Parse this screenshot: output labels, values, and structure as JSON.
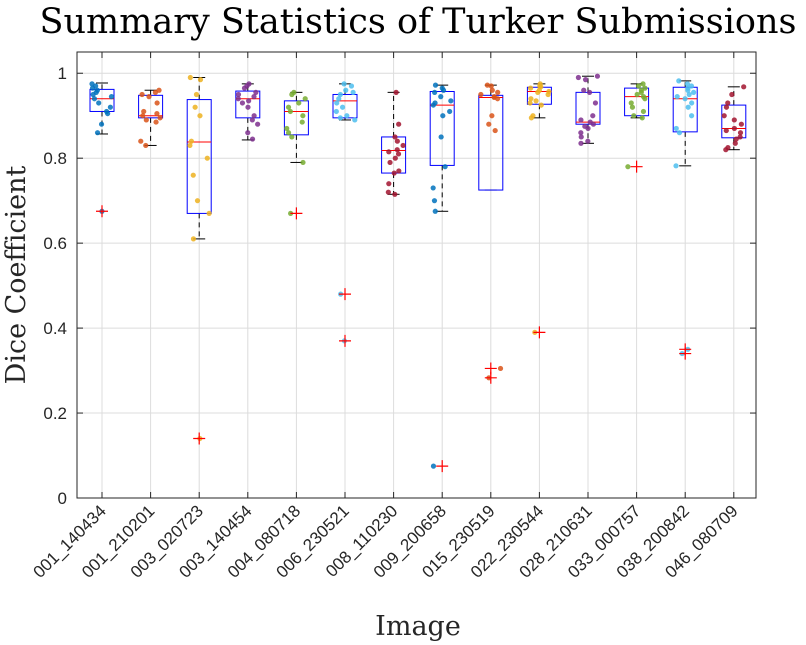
{
  "chart_data": {
    "type": "box",
    "title": "Summary Statistics of Turker Submissions",
    "xlabel": "Image",
    "ylabel": "Dice Coefficient",
    "ylim": [
      0,
      1.05
    ],
    "yticks": [
      0,
      0.2,
      0.4,
      0.6,
      0.8,
      1
    ],
    "ytick_labels": [
      "0",
      "0.2",
      "0.4",
      "0.6",
      "0.8",
      "1"
    ],
    "grid": true,
    "box_color": "#0000ff",
    "median_color": "#ff0000",
    "outlier_color": "#ff0000",
    "whisker_color": "#000000",
    "categories": [
      "001_140434",
      "001_210201",
      "003_020723",
      "003_140454",
      "004_080718",
      "006_230521",
      "008_110230",
      "009_200658",
      "015_230519",
      "022_230544",
      "028_210631",
      "033_000757",
      "038_200842",
      "046_080709"
    ],
    "boxes": [
      {
        "q1": 0.91,
        "median": 0.94,
        "q3": 0.962,
        "whisker_low": 0.857,
        "whisker_high": 0.977,
        "outliers": [
          0.675
        ],
        "color": "#0072bd",
        "points": [
          0.975,
          0.97,
          0.965,
          0.96,
          0.955,
          0.95,
          0.945,
          0.94,
          0.93,
          0.92,
          0.91,
          0.905,
          0.88,
          0.86,
          0.675
        ]
      },
      {
        "q1": 0.895,
        "median": 0.9,
        "q3": 0.948,
        "whisker_low": 0.83,
        "whisker_high": 0.96,
        "outliers": [],
        "color": "#d95319",
        "points": [
          0.96,
          0.955,
          0.95,
          0.945,
          0.93,
          0.91,
          0.905,
          0.9,
          0.895,
          0.89,
          0.885,
          0.84,
          0.83
        ]
      },
      {
        "q1": 0.67,
        "median": 0.838,
        "q3": 0.938,
        "whisker_low": 0.61,
        "whisker_high": 0.99,
        "outliers": [
          0.14
        ],
        "color": "#edb120",
        "points": [
          0.99,
          0.985,
          0.95,
          0.92,
          0.9,
          0.84,
          0.83,
          0.8,
          0.76,
          0.7,
          0.67,
          0.61,
          0.14
        ]
      },
      {
        "q1": 0.895,
        "median": 0.94,
        "q3": 0.958,
        "whisker_low": 0.843,
        "whisker_high": 0.975,
        "outliers": [],
        "color": "#7e2f8e",
        "points": [
          0.975,
          0.97,
          0.965,
          0.955,
          0.95,
          0.945,
          0.94,
          0.935,
          0.93,
          0.92,
          0.9,
          0.89,
          0.88,
          0.86,
          0.845
        ]
      },
      {
        "q1": 0.855,
        "median": 0.91,
        "q3": 0.935,
        "whisker_low": 0.79,
        "whisker_high": 0.955,
        "outliers": [
          0.67
        ],
        "color": "#77ac30",
        "points": [
          0.955,
          0.95,
          0.94,
          0.93,
          0.92,
          0.91,
          0.9,
          0.885,
          0.87,
          0.86,
          0.85,
          0.79,
          0.67
        ]
      },
      {
        "q1": 0.895,
        "median": 0.935,
        "q3": 0.95,
        "whisker_low": 0.89,
        "whisker_high": 0.975,
        "outliers": [
          0.48,
          0.37
        ],
        "color": "#4dbeee",
        "points": [
          0.975,
          0.97,
          0.96,
          0.955,
          0.95,
          0.94,
          0.93,
          0.92,
          0.91,
          0.9,
          0.895,
          0.89,
          0.48,
          0.37
        ]
      },
      {
        "q1": 0.765,
        "median": 0.818,
        "q3": 0.85,
        "whisker_low": 0.715,
        "whisker_high": 0.955,
        "outliers": [],
        "color": "#a2142f",
        "points": [
          0.955,
          0.88,
          0.85,
          0.84,
          0.83,
          0.82,
          0.815,
          0.81,
          0.8,
          0.79,
          0.77,
          0.765,
          0.74,
          0.72,
          0.715
        ]
      },
      {
        "q1": 0.783,
        "median": 0.925,
        "q3": 0.957,
        "whisker_low": 0.675,
        "whisker_high": 0.972,
        "outliers": [
          0.075
        ],
        "color": "#0072bd",
        "points": [
          0.972,
          0.965,
          0.96,
          0.955,
          0.945,
          0.935,
          0.93,
          0.925,
          0.91,
          0.9,
          0.85,
          0.78,
          0.73,
          0.7,
          0.675,
          0.075
        ]
      },
      {
        "q1": 0.725,
        "median": 0.943,
        "q3": 0.948,
        "whisker_low": 0.725,
        "whisker_high": 0.972,
        "outliers": [
          0.305,
          0.283
        ],
        "color": "#d95319",
        "points": [
          0.972,
          0.97,
          0.96,
          0.955,
          0.95,
          0.945,
          0.943,
          0.94,
          0.9,
          0.88,
          0.865,
          0.305,
          0.283
        ]
      },
      {
        "q1": 0.927,
        "median": 0.957,
        "q3": 0.967,
        "whisker_low": 0.895,
        "whisker_high": 0.975,
        "outliers": [
          0.39
        ],
        "color": "#edb120",
        "points": [
          0.975,
          0.97,
          0.968,
          0.965,
          0.96,
          0.957,
          0.955,
          0.95,
          0.94,
          0.935,
          0.93,
          0.925,
          0.9,
          0.895,
          0.39
        ]
      },
      {
        "q1": 0.88,
        "median": 0.885,
        "q3": 0.955,
        "whisker_low": 0.835,
        "whisker_high": 0.993,
        "outliers": [],
        "color": "#7e2f8e",
        "points": [
          0.993,
          0.99,
          0.985,
          0.96,
          0.955,
          0.93,
          0.9,
          0.89,
          0.885,
          0.88,
          0.875,
          0.87,
          0.86,
          0.85,
          0.84,
          0.835
        ]
      },
      {
        "q1": 0.9,
        "median": 0.945,
        "q3": 0.965,
        "whisker_low": 0.895,
        "whisker_high": 0.975,
        "outliers": [
          0.78
        ],
        "color": "#77ac30",
        "points": [
          0.975,
          0.97,
          0.965,
          0.96,
          0.955,
          0.95,
          0.945,
          0.94,
          0.93,
          0.92,
          0.91,
          0.9,
          0.895,
          0.78
        ]
      },
      {
        "q1": 0.862,
        "median": 0.94,
        "q3": 0.967,
        "whisker_low": 0.782,
        "whisker_high": 0.982,
        "outliers": [
          0.35,
          0.34
        ],
        "color": "#4dbeee",
        "points": [
          0.982,
          0.975,
          0.97,
          0.965,
          0.96,
          0.955,
          0.95,
          0.945,
          0.94,
          0.93,
          0.92,
          0.9,
          0.87,
          0.86,
          0.782,
          0.35,
          0.34
        ]
      },
      {
        "q1": 0.848,
        "median": 0.87,
        "q3": 0.925,
        "whisker_low": 0.82,
        "whisker_high": 0.968,
        "outliers": [],
        "color": "#a2142f",
        "points": [
          0.968,
          0.95,
          0.93,
          0.92,
          0.9,
          0.89,
          0.88,
          0.87,
          0.865,
          0.86,
          0.85,
          0.845,
          0.835,
          0.825,
          0.82
        ]
      }
    ]
  }
}
